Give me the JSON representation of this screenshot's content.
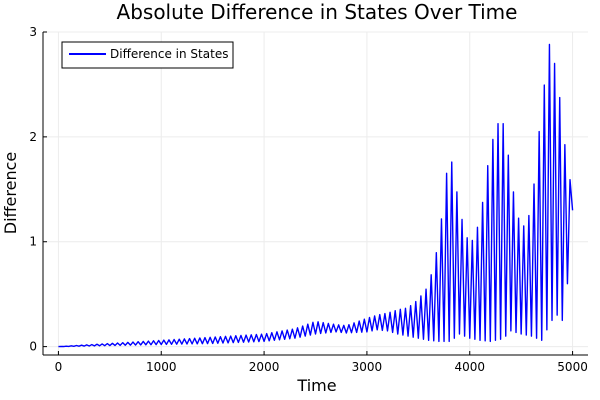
{
  "chart_data": {
    "type": "line",
    "title": "Absolute Difference in States Over Time",
    "xlabel": "Time",
    "ylabel": "Difference",
    "xlim": [
      -150,
      5150
    ],
    "ylim": [
      -0.08,
      3.0
    ],
    "xticks": [
      0,
      1000,
      2000,
      3000,
      4000,
      5000
    ],
    "xtick_labels": [
      "0",
      "1000",
      "2000",
      "3000",
      "4000",
      "5000"
    ],
    "yticks": [
      0,
      1,
      2,
      3
    ],
    "ytick_labels": [
      "0",
      "1",
      "2",
      "3"
    ],
    "grid": true,
    "legend_position": "top-left",
    "series": [
      {
        "name": "Difference in States",
        "color": "#0000ff",
        "oscillation_period": 50,
        "envelope": {
          "x": [
            0,
            500,
            1000,
            1500,
            2000,
            2300,
            2500,
            2700,
            2800,
            3000,
            3100,
            3200,
            3300,
            3400,
            3500,
            3600,
            3700,
            3800,
            3850,
            3900,
            4000,
            4100,
            4200,
            4300,
            4350,
            4400,
            4500,
            4600,
            4700,
            4780,
            4800,
            4850,
            4900,
            4950,
            4970,
            5000
          ],
          "upper": [
            0,
            0.03,
            0.06,
            0.09,
            0.12,
            0.17,
            0.24,
            0.21,
            0.2,
            0.27,
            0.3,
            0.32,
            0.35,
            0.37,
            0.45,
            0.58,
            1.0,
            1.87,
            1.65,
            1.3,
            0.95,
            1.2,
            1.9,
            2.2,
            2.05,
            1.6,
            1.1,
            1.3,
            2.3,
            2.92,
            2.85,
            2.55,
            2.2,
            1.65,
            1.6,
            1.55
          ],
          "lower": [
            0,
            0.01,
            0.02,
            0.03,
            0.05,
            0.08,
            0.12,
            0.14,
            0.13,
            0.14,
            0.16,
            0.15,
            0.12,
            0.1,
            0.08,
            0.06,
            0.05,
            0.05,
            0.08,
            0.12,
            0.08,
            0.06,
            0.05,
            0.07,
            0.1,
            0.15,
            0.12,
            0.1,
            0.06,
            0.22,
            0.25,
            0.3,
            0.25,
            0.6,
            0.3,
            1.3
          ]
        }
      }
    ]
  }
}
